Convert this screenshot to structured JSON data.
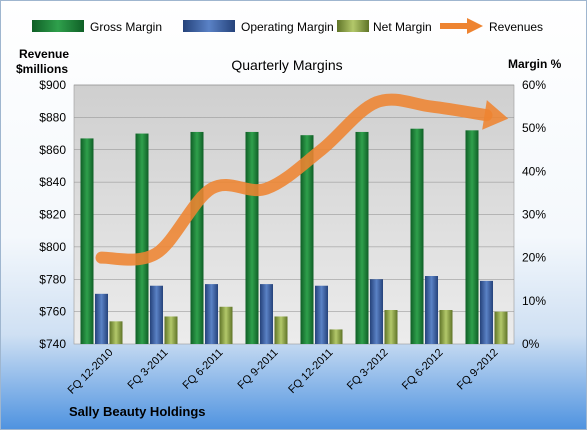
{
  "chart_data": {
    "type": "bar",
    "title": "Quarterly Margins",
    "company": "Sally Beauty Holdings",
    "categories": [
      "FQ 12-2010",
      "FQ 3-2011",
      "FQ 6-2011",
      "FQ 9-2011",
      "FQ 12-2011",
      "FQ 3-2012",
      "FQ 6-2012",
      "FQ 9-2012"
    ],
    "series": [
      {
        "name": "Gross Margin",
        "kind": "bar",
        "axis": "left",
        "unit": "$millions",
        "color": "#1f8a3a",
        "values": [
          867,
          870,
          871,
          871,
          869,
          871,
          873,
          872
        ]
      },
      {
        "name": "Operating Margin",
        "kind": "bar",
        "axis": "left",
        "unit": "$millions",
        "color": "#3b63a8",
        "values": [
          771,
          776,
          777,
          777,
          776,
          780,
          782,
          779
        ]
      },
      {
        "name": "Net Margin",
        "kind": "bar",
        "axis": "left",
        "unit": "$millions",
        "color": "#8fa84a",
        "values": [
          754,
          757,
          763,
          757,
          749,
          761,
          761,
          760
        ]
      },
      {
        "name": "Revenues",
        "kind": "line",
        "axis": "right",
        "unit": "%",
        "color": "#ee8431",
        "values": [
          0.2,
          0.21,
          0.36,
          0.36,
          0.45,
          0.56,
          0.55,
          0.53
        ]
      }
    ],
    "y_left": {
      "label_line1": "Revenue",
      "label_line2": "$millions",
      "min": 740,
      "max": 900,
      "ticks": [
        "$900",
        "$880",
        "$860",
        "$840",
        "$820",
        "$800",
        "$780",
        "$760",
        "$740"
      ]
    },
    "y_right": {
      "label": "Margin %",
      "min": 0,
      "max": 0.6,
      "ticks": [
        "60%",
        "50%",
        "40%",
        "30%",
        "20%",
        "10%",
        "0%"
      ]
    },
    "grid": true,
    "legend_position": "top"
  }
}
